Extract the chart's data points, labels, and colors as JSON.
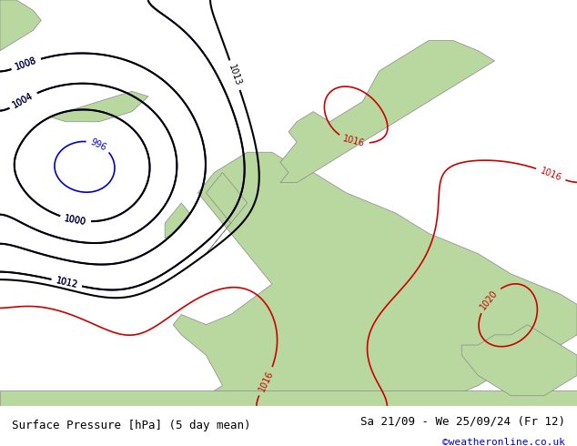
{
  "title_left": "Surface Pressure [hPa] (5 day mean)",
  "title_right": "Sa 21/09 - We 25/09/24 (Fr 12)",
  "credit": "©weatheronline.co.uk",
  "bg_color": "#d0e8f0",
  "land_color": "#b8d8a0",
  "coast_color": "#888888",
  "contour_black_color": "#000000",
  "contour_blue_color": "#0000cc",
  "contour_red_color": "#cc0000",
  "label_fontsize": 8,
  "footer_fontsize": 9,
  "credit_fontsize": 8,
  "credit_color": "#0000cc"
}
